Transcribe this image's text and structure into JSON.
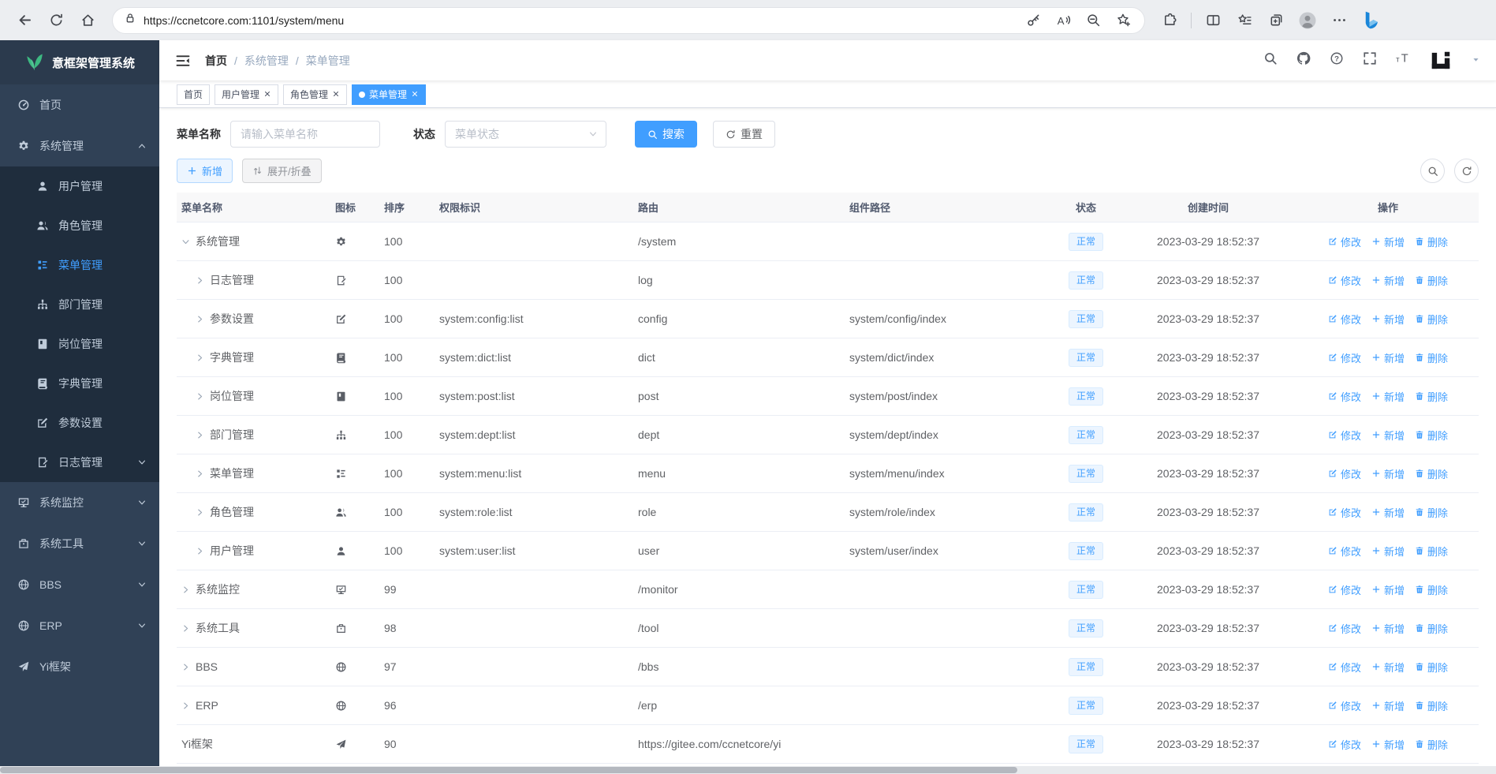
{
  "colors": {
    "accent": "#409eff",
    "sidebar_bg": "#304156",
    "submenu_bg": "#1f2d3d",
    "logo_green": "#3db982",
    "tag_bg": "#ecf5ff",
    "active_tab_bg": "#409eff"
  },
  "browser": {
    "url": "https://ccnetcore.com:1101/system/menu"
  },
  "app": {
    "logo_title": "意框架管理系统"
  },
  "sidebar": {
    "items": [
      {
        "label": "首页",
        "icon": "dashboard-icon",
        "sub": false
      },
      {
        "label": "系统管理",
        "icon": "gear-icon",
        "sub": false,
        "chevron": "up"
      },
      {
        "label": "用户管理",
        "icon": "user-icon",
        "sub": true
      },
      {
        "label": "角色管理",
        "icon": "users-icon",
        "sub": true
      },
      {
        "label": "菜单管理",
        "icon": "menu-tree-icon",
        "sub": true,
        "active": true
      },
      {
        "label": "部门管理",
        "icon": "org-tree-icon",
        "sub": true
      },
      {
        "label": "岗位管理",
        "icon": "badge-icon",
        "sub": true
      },
      {
        "label": "字典管理",
        "icon": "dict-icon",
        "sub": true
      },
      {
        "label": "参数设置",
        "icon": "edit-icon",
        "sub": true
      },
      {
        "label": "日志管理",
        "icon": "log-icon",
        "sub": true,
        "chevron": "down"
      },
      {
        "label": "系统监控",
        "icon": "monitor-icon",
        "sub": false,
        "chevron": "down"
      },
      {
        "label": "系统工具",
        "icon": "toolbox-icon",
        "sub": false,
        "chevron": "down"
      },
      {
        "label": "BBS",
        "icon": "globe-icon",
        "sub": false,
        "chevron": "down"
      },
      {
        "label": "ERP",
        "icon": "globe-icon",
        "sub": false,
        "chevron": "down"
      },
      {
        "label": "Yi框架",
        "icon": "plane-icon",
        "sub": false
      }
    ]
  },
  "navbar": {
    "breadcrumb": [
      "首页",
      "系统管理",
      "菜单管理"
    ]
  },
  "tabsbar": {
    "tabs": [
      {
        "label": "首页",
        "closable": false,
        "active": false
      },
      {
        "label": "用户管理",
        "closable": true,
        "active": false
      },
      {
        "label": "角色管理",
        "closable": true,
        "active": false
      },
      {
        "label": "菜单管理",
        "closable": true,
        "active": true
      }
    ]
  },
  "filter": {
    "name_label": "菜单名称",
    "name_placeholder": "请输入菜单名称",
    "status_label": "状态",
    "status_placeholder": "菜单状态",
    "search_label": "搜索",
    "reset_label": "重置"
  },
  "toolbar": {
    "add_label": "新增",
    "toggle_label": "展开/折叠"
  },
  "table": {
    "headers": [
      "菜单名称",
      "图标",
      "排序",
      "权限标识",
      "路由",
      "组件路径",
      "状态",
      "创建时间",
      "操作"
    ],
    "ops": {
      "edit": "修改",
      "add": "新增",
      "delete": "删除"
    },
    "rows": [
      {
        "name": "系统管理",
        "icon": "gear-icon",
        "arrow": "down",
        "level": 0,
        "sort": "100",
        "perm": "",
        "route": "/system",
        "component": "",
        "status": "正常",
        "created": "2023-03-29 18:52:37"
      },
      {
        "name": "日志管理",
        "icon": "log-icon",
        "arrow": "right",
        "level": 1,
        "sort": "100",
        "perm": "",
        "route": "log",
        "component": "",
        "status": "正常",
        "created": "2023-03-29 18:52:37"
      },
      {
        "name": "参数设置",
        "icon": "edit-icon",
        "arrow": "right",
        "level": 1,
        "sort": "100",
        "perm": "system:config:list",
        "route": "config",
        "component": "system/config/index",
        "status": "正常",
        "created": "2023-03-29 18:52:37"
      },
      {
        "name": "字典管理",
        "icon": "dict-icon",
        "arrow": "right",
        "level": 1,
        "sort": "100",
        "perm": "system:dict:list",
        "route": "dict",
        "component": "system/dict/index",
        "status": "正常",
        "created": "2023-03-29 18:52:37"
      },
      {
        "name": "岗位管理",
        "icon": "badge-icon",
        "arrow": "right",
        "level": 1,
        "sort": "100",
        "perm": "system:post:list",
        "route": "post",
        "component": "system/post/index",
        "status": "正常",
        "created": "2023-03-29 18:52:37"
      },
      {
        "name": "部门管理",
        "icon": "org-tree-icon",
        "arrow": "right",
        "level": 1,
        "sort": "100",
        "perm": "system:dept:list",
        "route": "dept",
        "component": "system/dept/index",
        "status": "正常",
        "created": "2023-03-29 18:52:37"
      },
      {
        "name": "菜单管理",
        "icon": "menu-tree-icon",
        "arrow": "right",
        "level": 1,
        "sort": "100",
        "perm": "system:menu:list",
        "route": "menu",
        "component": "system/menu/index",
        "status": "正常",
        "created": "2023-03-29 18:52:37"
      },
      {
        "name": "角色管理",
        "icon": "users-icon",
        "arrow": "right",
        "level": 1,
        "sort": "100",
        "perm": "system:role:list",
        "route": "role",
        "component": "system/role/index",
        "status": "正常",
        "created": "2023-03-29 18:52:37"
      },
      {
        "name": "用户管理",
        "icon": "user-icon",
        "arrow": "right",
        "level": 1,
        "sort": "100",
        "perm": "system:user:list",
        "route": "user",
        "component": "system/user/index",
        "status": "正常",
        "created": "2023-03-29 18:52:37"
      },
      {
        "name": "系统监控",
        "icon": "monitor-icon",
        "arrow": "right",
        "level": 0,
        "sort": "99",
        "perm": "",
        "route": "/monitor",
        "component": "",
        "status": "正常",
        "created": "2023-03-29 18:52:37"
      },
      {
        "name": "系统工具",
        "icon": "toolbox-icon",
        "arrow": "right",
        "level": 0,
        "sort": "98",
        "perm": "",
        "route": "/tool",
        "component": "",
        "status": "正常",
        "created": "2023-03-29 18:52:37"
      },
      {
        "name": "BBS",
        "icon": "globe-icon",
        "arrow": "right",
        "level": 0,
        "sort": "97",
        "perm": "",
        "route": "/bbs",
        "component": "",
        "status": "正常",
        "created": "2023-03-29 18:52:37"
      },
      {
        "name": "ERP",
        "icon": "globe-icon",
        "arrow": "right",
        "level": 0,
        "sort": "96",
        "perm": "",
        "route": "/erp",
        "component": "",
        "status": "正常",
        "created": "2023-03-29 18:52:37"
      },
      {
        "name": "Yi框架",
        "icon": "plane-icon",
        "arrow": "none",
        "level": 0,
        "sort": "90",
        "perm": "",
        "route": "https://gitee.com/ccnetcore/yi",
        "component": "",
        "status": "正常",
        "created": "2023-03-29 18:52:37"
      }
    ]
  }
}
